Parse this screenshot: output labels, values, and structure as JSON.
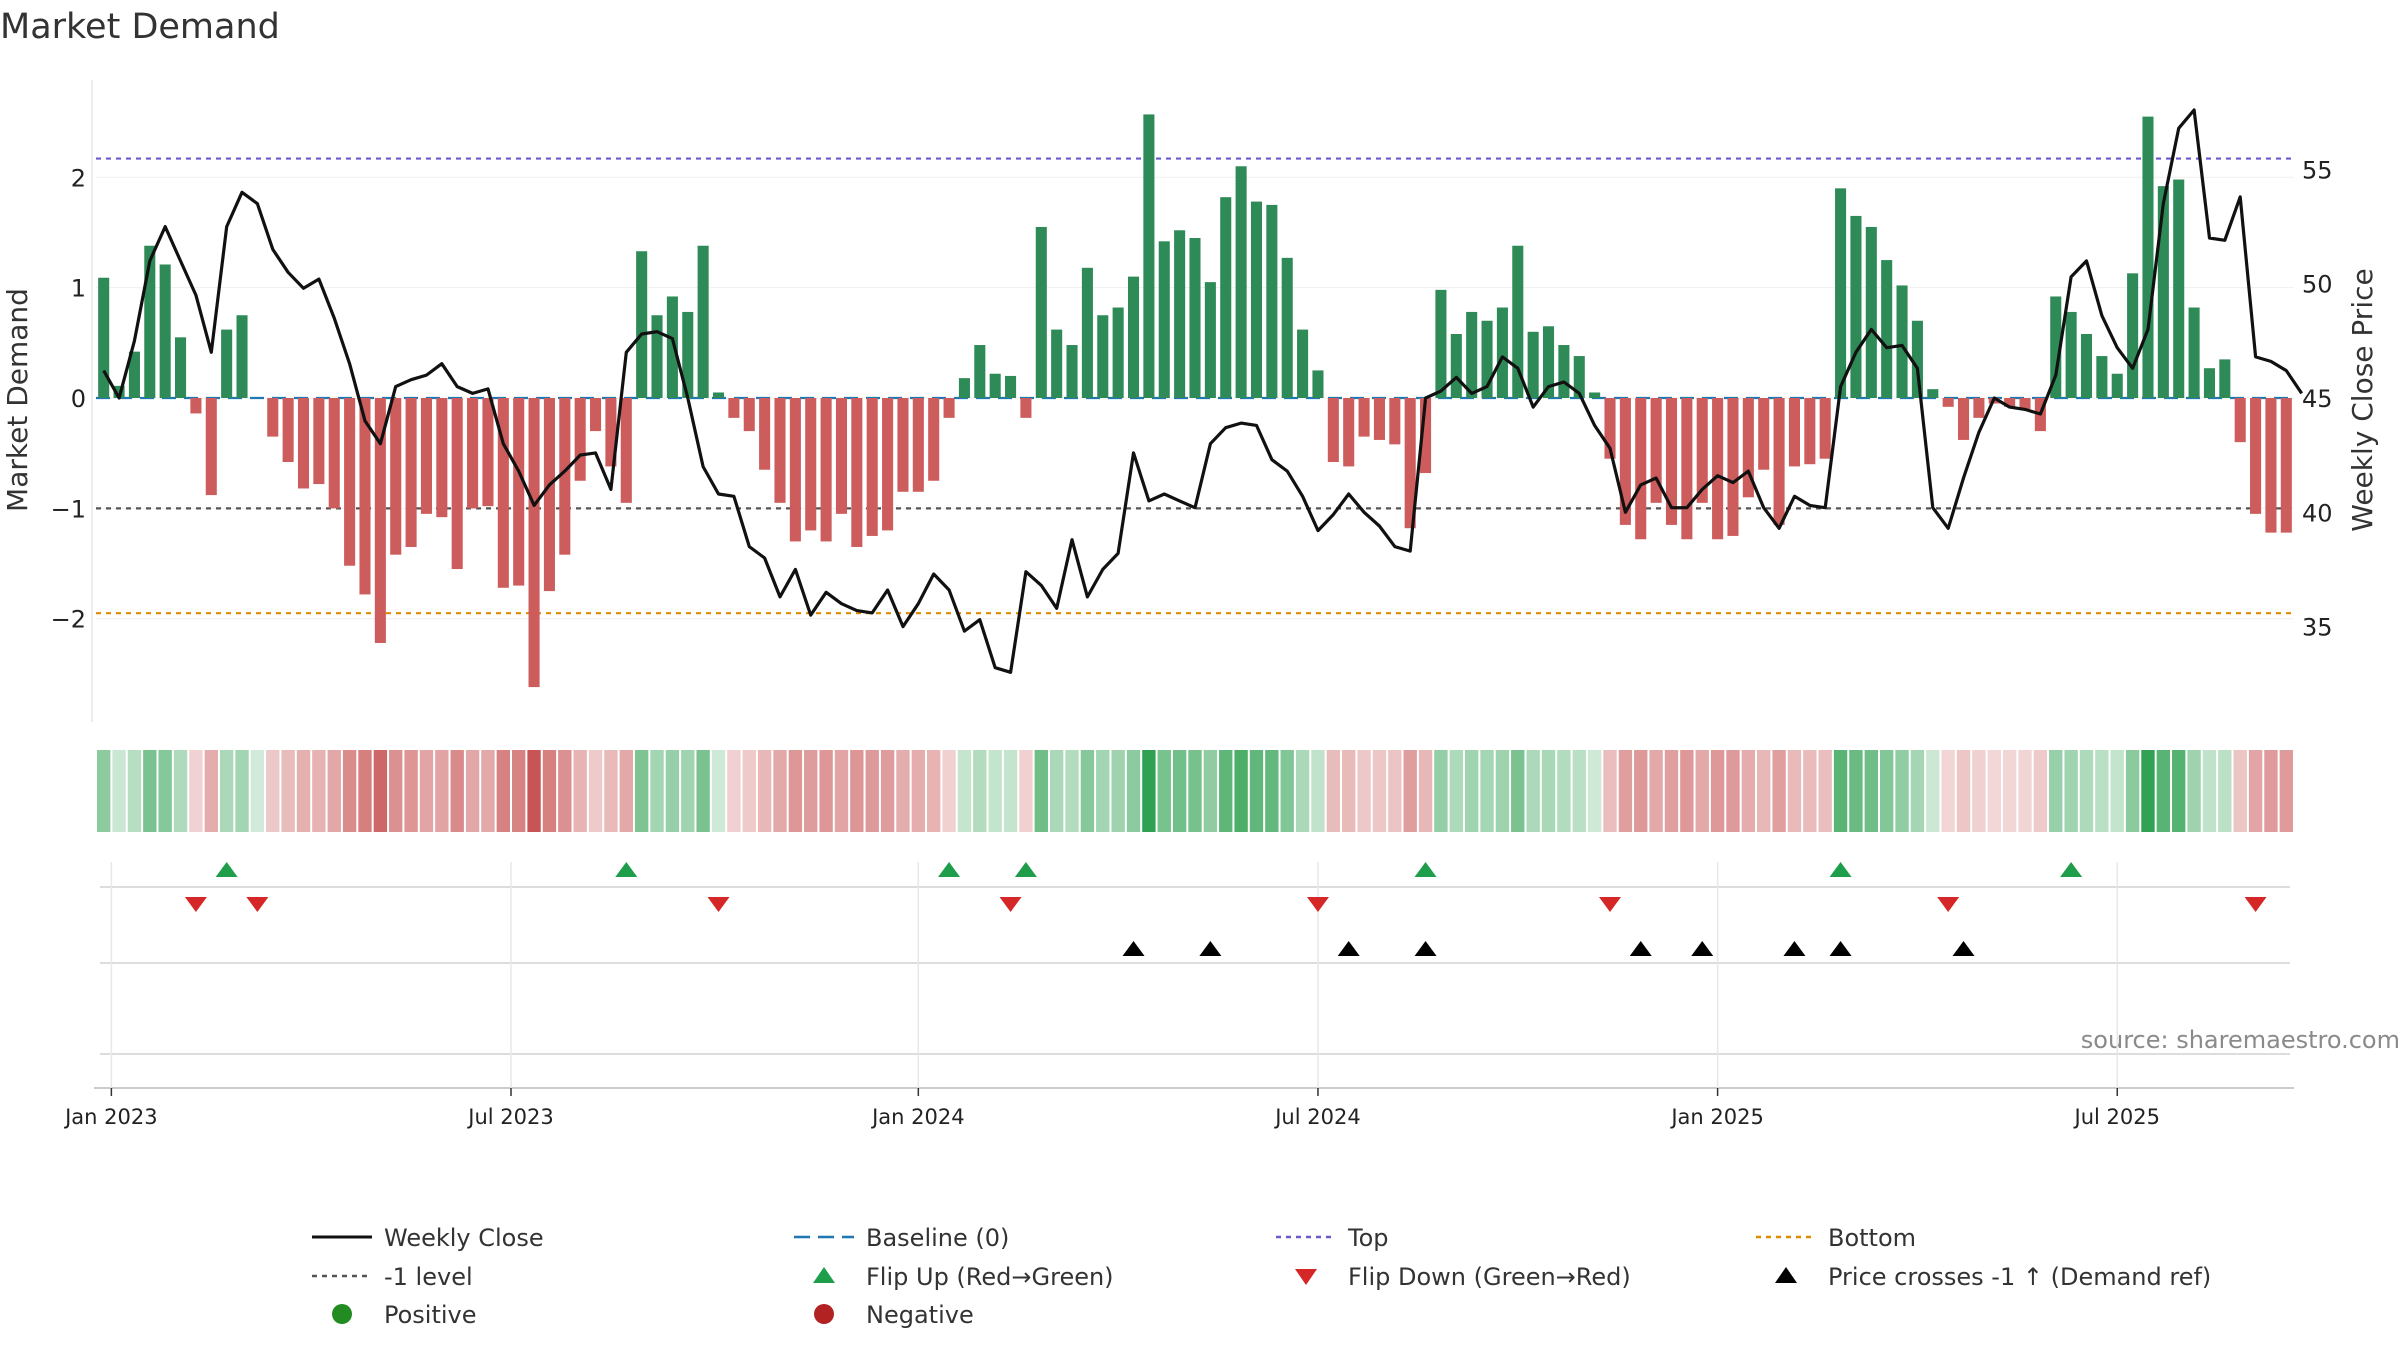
{
  "chart_data": {
    "type": "bar",
    "title": "Market Demand",
    "ylabel_left": "Market Demand",
    "ylabel_right": "Weekly Close Price",
    "source_note": "source: sharemaestro.com",
    "x_ticks": [
      "Jan 2023",
      "Jul 2023",
      "Jan 2024",
      "Jul 2024",
      "Jan 2025",
      "Jul 2025"
    ],
    "x_tick_weeks": [
      0.5,
      26.5,
      53,
      79,
      105,
      131
    ],
    "left_axis": {
      "ylim": [
        -2.9,
        2.9
      ],
      "ticks": [
        2,
        1,
        0,
        -1,
        -2
      ],
      "tick_labels": [
        "2",
        "1",
        "0",
        "−1",
        "−2"
      ]
    },
    "right_axis": {
      "ylim": [
        31,
        59
      ],
      "ticks": [
        55,
        50,
        45,
        40,
        35
      ],
      "tick_labels": [
        "55",
        "50",
        "45",
        "40",
        "35"
      ]
    },
    "reference_lines": {
      "top": 2.17,
      "minus_one": -1.0,
      "bottom": -1.95,
      "baseline": 0
    },
    "demand": [
      1.09,
      0.11,
      0.42,
      1.38,
      1.21,
      0.55,
      -0.14,
      -0.88,
      0.62,
      0.75,
      0.0,
      -0.35,
      -0.58,
      -0.82,
      -0.78,
      -1.0,
      -1.52,
      -1.78,
      -2.22,
      -1.42,
      -1.35,
      -1.05,
      -1.08,
      -1.55,
      -1.0,
      -0.98,
      -1.72,
      -1.7,
      -2.62,
      -1.75,
      -1.42,
      -0.75,
      -0.3,
      -0.62,
      -0.95,
      1.33,
      0.75,
      0.92,
      0.78,
      1.38,
      0.05,
      -0.18,
      -0.3,
      -0.65,
      -0.95,
      -1.3,
      -1.2,
      -1.3,
      -1.05,
      -1.35,
      -1.25,
      -1.2,
      -0.85,
      -0.85,
      -0.75,
      -0.18,
      0.18,
      0.48,
      0.22,
      0.2,
      -0.18,
      1.55,
      0.62,
      0.48,
      1.18,
      0.75,
      0.82,
      1.1,
      2.57,
      1.42,
      1.52,
      1.45,
      1.05,
      1.82,
      2.1,
      1.78,
      1.75,
      1.27,
      0.62,
      0.25,
      -0.58,
      -0.62,
      -0.35,
      -0.38,
      -0.42,
      -1.18,
      -0.68,
      0.98,
      0.58,
      0.78,
      0.7,
      0.82,
      1.38,
      0.6,
      0.65,
      0.48,
      0.38,
      0.05,
      -0.55,
      -1.15,
      -1.28,
      -0.95,
      -1.15,
      -1.28,
      -0.95,
      -1.28,
      -1.25,
      -0.9,
      -0.65,
      -1.15,
      -0.62,
      -0.6,
      -0.55,
      1.9,
      1.65,
      1.55,
      1.25,
      1.02,
      0.7,
      0.08,
      -0.08,
      -0.38,
      -0.18,
      -0.05,
      -0.08,
      -0.1,
      -0.3,
      0.92,
      0.78,
      0.58,
      0.38,
      0.22,
      1.13,
      2.55,
      1.92,
      1.98,
      0.82,
      0.27,
      0.35,
      -0.4,
      -1.05,
      -1.22,
      -1.22
    ],
    "price": [
      46.2,
      45.0,
      47.5,
      51.0,
      52.5,
      51.0,
      49.5,
      47.0,
      52.5,
      54.0,
      53.5,
      51.5,
      50.5,
      49.8,
      50.2,
      48.5,
      46.5,
      44.0,
      43.0,
      45.5,
      45.8,
      46.0,
      46.5,
      45.5,
      45.2,
      45.4,
      43.0,
      41.8,
      40.3,
      41.2,
      41.8,
      42.5,
      42.6,
      41.0,
      47.0,
      47.8,
      47.9,
      47.6,
      45.0,
      42.0,
      40.8,
      40.7,
      38.5,
      38.0,
      36.3,
      37.5,
      35.5,
      36.5,
      36.0,
      35.7,
      35.6,
      36.6,
      35.0,
      36.0,
      37.3,
      36.6,
      34.8,
      35.3,
      33.2,
      33.0,
      37.4,
      36.8,
      35.8,
      38.8,
      36.3,
      37.5,
      38.2,
      42.6,
      40.5,
      40.8,
      40.5,
      40.2,
      43.0,
      43.7,
      43.9,
      43.8,
      42.3,
      41.8,
      40.7,
      39.2,
      39.9,
      40.8,
      40.0,
      39.4,
      38.5,
      38.3,
      45.0,
      45.3,
      45.9,
      45.2,
      45.5,
      46.8,
      46.3,
      44.6,
      45.5,
      45.7,
      45.2,
      43.8,
      42.8,
      40.0,
      41.2,
      41.5,
      40.2,
      40.2,
      41.0,
      41.6,
      41.3,
      41.8,
      40.2,
      39.3,
      40.7,
      40.3,
      40.2,
      45.5,
      47.0,
      48.0,
      47.2,
      47.3,
      46.3,
      40.2,
      39.3,
      41.5,
      43.5,
      45.0,
      44.6,
      44.5,
      44.3,
      46.0,
      50.3,
      51.0,
      48.6,
      47.2,
      46.3,
      48.0,
      53.5,
      56.8,
      57.6,
      52.0,
      51.9,
      53.8,
      46.8,
      46.6,
      46.2,
      45.2
    ],
    "flip_up_weeks": [
      8,
      34,
      55,
      60,
      86,
      113,
      128
    ],
    "flip_down_weeks": [
      6,
      10,
      40,
      59,
      79,
      98,
      120,
      140
    ],
    "price_cross_weeks": [
      67,
      72,
      81,
      86,
      100,
      104,
      110,
      113,
      121
    ],
    "legend": [
      {
        "label": "Weekly Close",
        "style": "line-black"
      },
      {
        "label": "Baseline (0)",
        "style": "dash-blue"
      },
      {
        "label": "Top",
        "style": "dot-purple"
      },
      {
        "label": "Bottom",
        "style": "dot-orange"
      },
      {
        "label": "-1 level",
        "style": "dot-gray"
      },
      {
        "label": "Flip Up (Red→Green)",
        "style": "tri-up-green"
      },
      {
        "label": "Flip Down (Green→Red)",
        "style": "tri-down-red"
      },
      {
        "label": "Price crosses -1 ↑ (Demand ref)",
        "style": "tri-up-black"
      },
      {
        "label": "Positive",
        "style": "dot-green"
      },
      {
        "label": "Negative",
        "style": "dot-red"
      }
    ],
    "colors": {
      "positive": "#2e8b57",
      "negative": "#cd5c5c",
      "price_line": "#111111",
      "baseline": "#1f77b4",
      "top_line": "#6a5acd",
      "bottom_line": "#e08a00",
      "minus_one_line": "#555555",
      "flip_up": "#1e9e4a",
      "flip_down": "#d62728",
      "cross": "#000000",
      "legend_positive": "#228b22",
      "legend_negative": "#b22222"
    }
  }
}
